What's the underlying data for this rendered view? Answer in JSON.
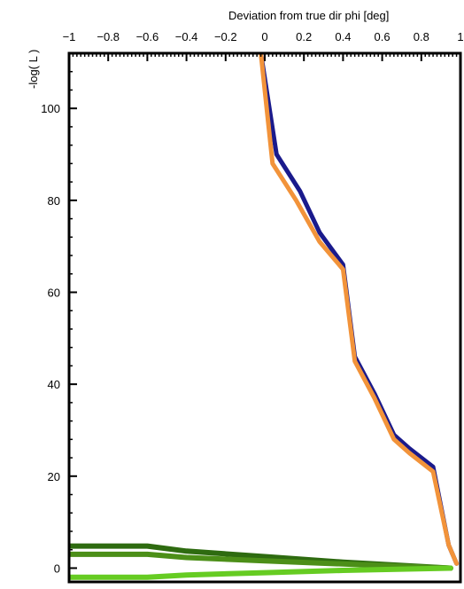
{
  "chart_data": {
    "type": "line",
    "title": "",
    "xlabel": "Deviation from true dir phi [deg]",
    "ylabel": "-log( L )",
    "xlim": [
      -1,
      1
    ],
    "ylim": [
      -3,
      112
    ],
    "x_axis_position": "top",
    "grid": false,
    "legend": "none",
    "x_ticks": [
      {
        "value": -1,
        "label": "−1"
      },
      {
        "value": -0.8,
        "label": "−0.8"
      },
      {
        "value": -0.6,
        "label": "−0.6"
      },
      {
        "value": -0.4,
        "label": "−0.4"
      },
      {
        "value": -0.2,
        "label": "−0.2"
      },
      {
        "value": 0,
        "label": "0"
      },
      {
        "value": 0.2,
        "label": "0.2"
      },
      {
        "value": 0.4,
        "label": "0.4"
      },
      {
        "value": 0.6,
        "label": "0.6"
      },
      {
        "value": 0.8,
        "label": "0.8"
      },
      {
        "value": 1,
        "label": "1"
      }
    ],
    "y_ticks": [
      {
        "value": 0,
        "label": "0"
      },
      {
        "value": 20,
        "label": "20"
      },
      {
        "value": 40,
        "label": "40"
      },
      {
        "value": 60,
        "label": "60"
      },
      {
        "value": 80,
        "label": "80"
      },
      {
        "value": 100,
        "label": "100"
      }
    ],
    "series": [
      {
        "color": "#1a1a8c",
        "width": 5,
        "points": [
          [
            -0.02,
            112
          ],
          [
            0.06,
            90
          ],
          [
            0.18,
            82
          ],
          [
            0.28,
            73
          ],
          [
            0.4,
            66
          ],
          [
            0.46,
            46
          ],
          [
            0.56,
            38
          ],
          [
            0.66,
            29
          ],
          [
            0.74,
            26
          ],
          [
            0.86,
            22
          ],
          [
            0.94,
            5
          ],
          [
            0.98,
            1
          ]
        ]
      },
      {
        "color": "#f2933a",
        "width": 5,
        "points": [
          [
            -0.02,
            112
          ],
          [
            0.04,
            88
          ],
          [
            0.16,
            80
          ],
          [
            0.28,
            71
          ],
          [
            0.4,
            65
          ],
          [
            0.46,
            45
          ],
          [
            0.56,
            37
          ],
          [
            0.66,
            28
          ],
          [
            0.74,
            25
          ],
          [
            0.86,
            21
          ],
          [
            0.94,
            5
          ],
          [
            0.98,
            1
          ]
        ]
      },
      {
        "color": "#2e6b10",
        "width": 6,
        "points": [
          [
            -1,
            4.8
          ],
          [
            -0.6,
            4.8
          ],
          [
            -0.4,
            3.7
          ],
          [
            0,
            2.5
          ],
          [
            0.4,
            1.3
          ],
          [
            0.95,
            0
          ]
        ]
      },
      {
        "color": "#4c8f18",
        "width": 6,
        "points": [
          [
            -1,
            3.0
          ],
          [
            -0.6,
            3.0
          ],
          [
            -0.4,
            2.3
          ],
          [
            0,
            1.6
          ],
          [
            0.4,
            0.9
          ],
          [
            0.95,
            0
          ]
        ]
      },
      {
        "color": "#66cc22",
        "width": 6,
        "points": [
          [
            -1,
            -2.0
          ],
          [
            -0.6,
            -2.0
          ],
          [
            -0.4,
            -1.5
          ],
          [
            0,
            -1.0
          ],
          [
            0.4,
            -0.5
          ],
          [
            0.95,
            0
          ]
        ]
      }
    ]
  }
}
